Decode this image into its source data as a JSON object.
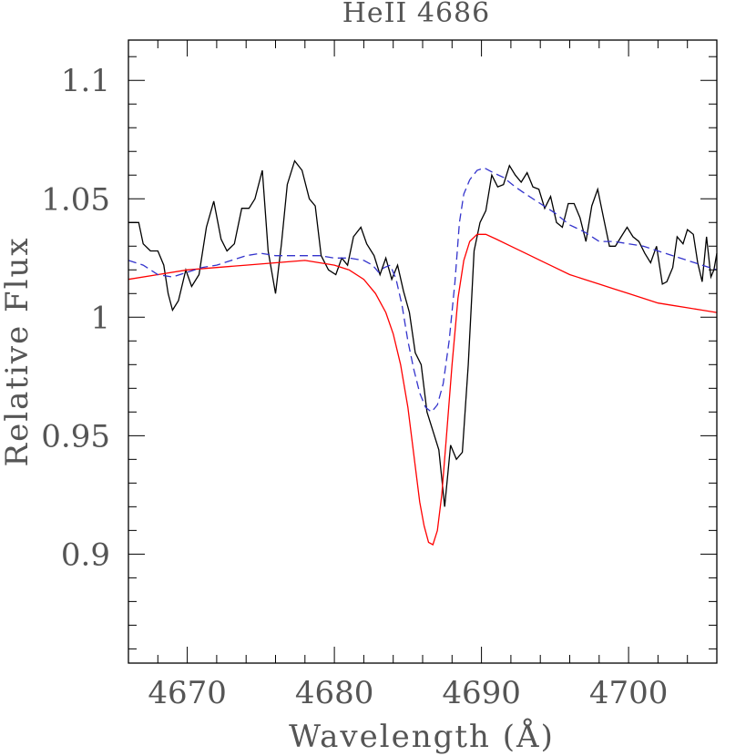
{
  "chart_data": {
    "type": "line",
    "title": "HeII 4686",
    "xlabel": "Wavelength (Å)",
    "ylabel": "Relative Flux",
    "xlim": [
      4666,
      4706
    ],
    "ylim": [
      0.854,
      1.117
    ],
    "x_ticks": [
      4670,
      4680,
      4690,
      4700
    ],
    "x_tick_labels": [
      "4670",
      "4680",
      "4690",
      "4700"
    ],
    "y_ticks": [
      0.9,
      0.95,
      1.0,
      1.05,
      1.1
    ],
    "y_tick_labels": [
      "0.9",
      "0.95",
      "1",
      "1.05",
      "1.1"
    ],
    "grid": false,
    "series": [
      {
        "color": "#000000",
        "style": "solid",
        "points": [
          [
            4666.0,
            1.04
          ],
          [
            4666.7,
            1.04
          ],
          [
            4667.0,
            1.031
          ],
          [
            4667.5,
            1.028
          ],
          [
            4668.0,
            1.028
          ],
          [
            4668.4,
            1.022
          ],
          [
            4668.7,
            1.01
          ],
          [
            4669.0,
            1.003
          ],
          [
            4669.4,
            1.007
          ],
          [
            4669.9,
            1.02
          ],
          [
            4670.3,
            1.013
          ],
          [
            4670.8,
            1.018
          ],
          [
            4671.3,
            1.038
          ],
          [
            4671.8,
            1.049
          ],
          [
            4672.3,
            1.033
          ],
          [
            4672.7,
            1.028
          ],
          [
            4673.2,
            1.031
          ],
          [
            4673.7,
            1.046
          ],
          [
            4674.2,
            1.046
          ],
          [
            4674.6,
            1.05
          ],
          [
            4675.1,
            1.062
          ],
          [
            4675.5,
            1.028
          ],
          [
            4676.0,
            1.01
          ],
          [
            4676.4,
            1.031
          ],
          [
            4676.8,
            1.056
          ],
          [
            4677.3,
            1.066
          ],
          [
            4677.8,
            1.062
          ],
          [
            4678.3,
            1.05
          ],
          [
            4678.7,
            1.047
          ],
          [
            4679.1,
            1.026
          ],
          [
            4679.6,
            1.02
          ],
          [
            4680.1,
            1.018
          ],
          [
            4680.5,
            1.025
          ],
          [
            4680.9,
            1.022
          ],
          [
            4681.3,
            1.034
          ],
          [
            4681.8,
            1.038
          ],
          [
            4682.2,
            1.031
          ],
          [
            4682.7,
            1.026
          ],
          [
            4683.1,
            1.018
          ],
          [
            4683.5,
            1.025
          ],
          [
            4683.9,
            1.016
          ],
          [
            4684.3,
            1.022
          ],
          [
            4684.7,
            1.011
          ],
          [
            4685.1,
            1.002
          ],
          [
            4685.5,
            0.985
          ],
          [
            4685.9,
            0.98
          ],
          [
            4686.3,
            0.96
          ],
          [
            4686.7,
            0.952
          ],
          [
            4687.1,
            0.944
          ],
          [
            4687.5,
            0.92
          ],
          [
            4687.9,
            0.946
          ],
          [
            4688.3,
            0.94
          ],
          [
            4688.7,
            0.943
          ],
          [
            4689.1,
            0.98
          ],
          [
            4689.5,
            1.028
          ],
          [
            4689.9,
            1.04
          ],
          [
            4690.3,
            1.045
          ],
          [
            4690.7,
            1.06
          ],
          [
            4691.1,
            1.055
          ],
          [
            4691.5,
            1.056
          ],
          [
            4691.9,
            1.064
          ],
          [
            4692.3,
            1.06
          ],
          [
            4692.7,
            1.057
          ],
          [
            4693.1,
            1.061
          ],
          [
            4693.5,
            1.055
          ],
          [
            4693.9,
            1.054
          ],
          [
            4694.3,
            1.046
          ],
          [
            4694.7,
            1.051
          ],
          [
            4695.1,
            1.04
          ],
          [
            4695.5,
            1.038
          ],
          [
            4695.9,
            1.048
          ],
          [
            4696.3,
            1.048
          ],
          [
            4696.7,
            1.042
          ],
          [
            4697.1,
            1.032
          ],
          [
            4697.5,
            1.047
          ],
          [
            4697.9,
            1.054
          ],
          [
            4698.3,
            1.042
          ],
          [
            4698.7,
            1.03
          ],
          [
            4699.1,
            1.03
          ],
          [
            4699.5,
            1.034
          ],
          [
            4699.9,
            1.038
          ],
          [
            4700.3,
            1.034
          ],
          [
            4700.7,
            1.032
          ],
          [
            4701.1,
            1.027
          ],
          [
            4701.5,
            1.023
          ],
          [
            4701.9,
            1.03
          ],
          [
            4702.3,
            1.014
          ],
          [
            4702.6,
            1.015
          ],
          [
            4703.0,
            1.021
          ],
          [
            4703.3,
            1.034
          ],
          [
            4703.7,
            1.031
          ],
          [
            4704.0,
            1.037
          ],
          [
            4704.4,
            1.035
          ],
          [
            4704.7,
            1.023
          ],
          [
            4705.0,
            1.015
          ],
          [
            4705.3,
            1.034
          ],
          [
            4705.6,
            1.017
          ],
          [
            4705.8,
            1.02
          ],
          [
            4706.0,
            1.027
          ]
        ]
      },
      {
        "color": "#ff0000",
        "style": "solid",
        "points": [
          [
            4666.0,
            1.016
          ],
          [
            4668.0,
            1.018
          ],
          [
            4670.0,
            1.02
          ],
          [
            4672.0,
            1.021
          ],
          [
            4674.0,
            1.022
          ],
          [
            4676.0,
            1.023
          ],
          [
            4678.0,
            1.024
          ],
          [
            4679.0,
            1.023
          ],
          [
            4680.0,
            1.022
          ],
          [
            4681.0,
            1.02
          ],
          [
            4682.0,
            1.016
          ],
          [
            4682.8,
            1.01
          ],
          [
            4683.5,
            1.002
          ],
          [
            4684.0,
            0.993
          ],
          [
            4684.5,
            0.98
          ],
          [
            4685.0,
            0.962
          ],
          [
            4685.4,
            0.942
          ],
          [
            4685.8,
            0.922
          ],
          [
            4686.1,
            0.912
          ],
          [
            4686.4,
            0.905
          ],
          [
            4686.7,
            0.904
          ],
          [
            4687.0,
            0.91
          ],
          [
            4687.3,
            0.925
          ],
          [
            4687.6,
            0.948
          ],
          [
            4688.0,
            0.98
          ],
          [
            4688.4,
            1.008
          ],
          [
            4688.8,
            1.024
          ],
          [
            4689.2,
            1.032
          ],
          [
            4689.7,
            1.035
          ],
          [
            4690.3,
            1.035
          ],
          [
            4691.0,
            1.033
          ],
          [
            4692.0,
            1.03
          ],
          [
            4693.0,
            1.027
          ],
          [
            4694.0,
            1.024
          ],
          [
            4695.0,
            1.021
          ],
          [
            4696.0,
            1.018
          ],
          [
            4697.0,
            1.016
          ],
          [
            4698.0,
            1.014
          ],
          [
            4699.0,
            1.012
          ],
          [
            4700.0,
            1.01
          ],
          [
            4701.0,
            1.008
          ],
          [
            4702.0,
            1.006
          ],
          [
            4703.0,
            1.005
          ],
          [
            4704.0,
            1.004
          ],
          [
            4705.0,
            1.003
          ],
          [
            4706.0,
            1.002
          ]
        ]
      },
      {
        "color": "#3333cc",
        "style": "dashed",
        "points": [
          [
            4666.0,
            1.024
          ],
          [
            4667.0,
            1.022
          ],
          [
            4668.0,
            1.018
          ],
          [
            4669.0,
            1.017
          ],
          [
            4670.0,
            1.019
          ],
          [
            4671.0,
            1.021
          ],
          [
            4672.0,
            1.022
          ],
          [
            4673.0,
            1.024
          ],
          [
            4674.0,
            1.026
          ],
          [
            4675.0,
            1.027
          ],
          [
            4676.0,
            1.026
          ],
          [
            4677.0,
            1.026
          ],
          [
            4678.0,
            1.026
          ],
          [
            4679.0,
            1.026
          ],
          [
            4680.0,
            1.025
          ],
          [
            4681.0,
            1.025
          ],
          [
            4682.0,
            1.024
          ],
          [
            4682.6,
            1.022
          ],
          [
            4683.0,
            1.019
          ],
          [
            4683.4,
            1.021
          ],
          [
            4683.8,
            1.022
          ],
          [
            4684.2,
            1.016
          ],
          [
            4684.6,
            1.005
          ],
          [
            4685.0,
            0.99
          ],
          [
            4685.4,
            0.978
          ],
          [
            4685.8,
            0.968
          ],
          [
            4686.2,
            0.962
          ],
          [
            4686.6,
            0.96
          ],
          [
            4687.0,
            0.963
          ],
          [
            4687.4,
            0.972
          ],
          [
            4687.8,
            0.99
          ],
          [
            4688.2,
            1.015
          ],
          [
            4688.5,
            1.04
          ],
          [
            4688.8,
            1.052
          ],
          [
            4689.2,
            1.058
          ],
          [
            4689.7,
            1.062
          ],
          [
            4690.2,
            1.063
          ],
          [
            4690.8,
            1.061
          ],
          [
            4691.5,
            1.059
          ],
          [
            4692.3,
            1.055
          ],
          [
            4693.0,
            1.052
          ],
          [
            4694.0,
            1.048
          ],
          [
            4695.0,
            1.044
          ],
          [
            4696.0,
            1.039
          ],
          [
            4697.0,
            1.036
          ],
          [
            4698.0,
            1.032
          ],
          [
            4699.0,
            1.032
          ],
          [
            4700.0,
            1.031
          ],
          [
            4701.0,
            1.03
          ],
          [
            4702.0,
            1.028
          ],
          [
            4703.0,
            1.026
          ],
          [
            4704.0,
            1.024
          ],
          [
            4705.0,
            1.022
          ],
          [
            4706.0,
            1.02
          ]
        ]
      }
    ]
  }
}
